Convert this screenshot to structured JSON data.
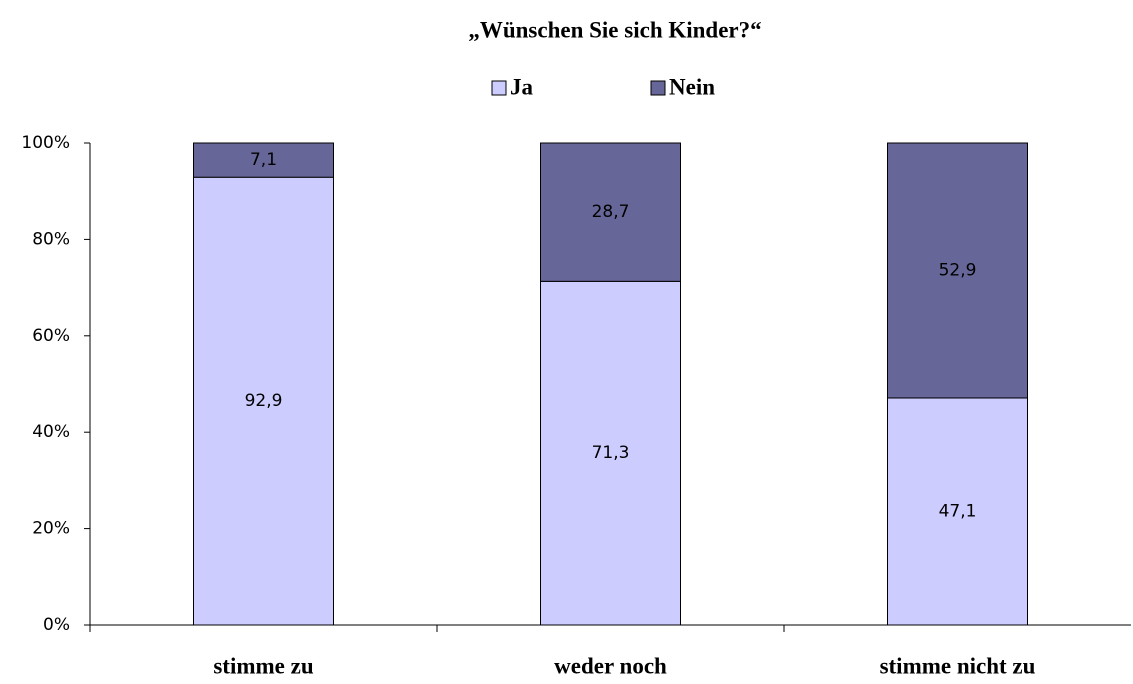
{
  "chart_data": {
    "type": "stacked_bar",
    "title": "„Wünschen Sie sich Kinder?“",
    "categories": [
      "stimme zu",
      "weder noch",
      "stimme nicht zu"
    ],
    "series": [
      {
        "name": "Ja",
        "color": "#ccccff",
        "values": [
          92.9,
          71.3,
          47.1
        ],
        "value_labels": [
          "92,9",
          "71,3",
          "47,1"
        ]
      },
      {
        "name": "Nein",
        "color": "#666699",
        "values": [
          7.1,
          28.7,
          52.9
        ],
        "value_labels": [
          "7,1",
          "28,7",
          "52,9"
        ]
      }
    ],
    "ylim": [
      0,
      100
    ],
    "yticks": [
      {
        "value": 0,
        "label": "0%"
      },
      {
        "value": 20,
        "label": "20%"
      },
      {
        "value": 40,
        "label": "40%"
      },
      {
        "value": 60,
        "label": "60%"
      },
      {
        "value": 80,
        "label": "80%"
      },
      {
        "value": 100,
        "label": "100%"
      }
    ],
    "legend": "top"
  }
}
